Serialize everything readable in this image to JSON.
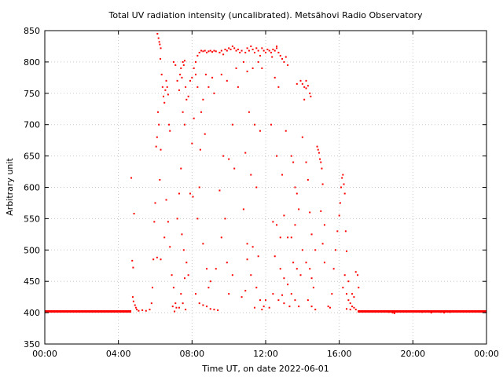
{
  "chart_data": {
    "type": "scatter",
    "title": "Total UV radiation intensity (uncalibrated). Metsähovi Radio Observatory",
    "xlabel": "Time UT, on date 2022-06-01",
    "ylabel": "Arbitrary unit",
    "xlim_hours": [
      0,
      24
    ],
    "ylim": [
      350,
      850
    ],
    "x_ticks": [
      {
        "hour": 0,
        "label": "00:00"
      },
      {
        "hour": 4,
        "label": "04:00"
      },
      {
        "hour": 8,
        "label": "08:00"
      },
      {
        "hour": 12,
        "label": "12:00"
      },
      {
        "hour": 16,
        "label": "16:00"
      },
      {
        "hour": 20,
        "label": "20:00"
      },
      {
        "hour": 24,
        "label": "00:00"
      }
    ],
    "y_ticks": [
      350,
      400,
      450,
      500,
      550,
      600,
      650,
      700,
      750,
      800,
      850
    ],
    "grid": true,
    "series_color": "#ff0000",
    "baseline_segments": [
      {
        "x_from": 0.0,
        "x_to": 4.7,
        "y": 402
      },
      {
        "x_from": 17.0,
        "x_to": 24.0,
        "y": 402
      }
    ],
    "points": [
      [
        4.7,
        615
      ],
      [
        4.75,
        483
      ],
      [
        4.8,
        472
      ],
      [
        4.85,
        558
      ],
      [
        4.78,
        425
      ],
      [
        4.82,
        418
      ],
      [
        4.9,
        412
      ],
      [
        4.95,
        408
      ],
      [
        5.0,
        405
      ],
      [
        5.1,
        403
      ],
      [
        5.3,
        404
      ],
      [
        5.5,
        403
      ],
      [
        5.7,
        405
      ],
      [
        5.8,
        415
      ],
      [
        5.85,
        440
      ],
      [
        5.9,
        485
      ],
      [
        5.95,
        545
      ],
      [
        6.0,
        575
      ],
      [
        6.05,
        665
      ],
      [
        6.1,
        680
      ],
      [
        6.15,
        720
      ],
      [
        6.12,
        845
      ],
      [
        6.18,
        838
      ],
      [
        6.22,
        832
      ],
      [
        6.25,
        828
      ],
      [
        6.3,
        822
      ],
      [
        6.28,
        805
      ],
      [
        6.35,
        780
      ],
      [
        6.4,
        760
      ],
      [
        6.45,
        745
      ],
      [
        6.5,
        735
      ],
      [
        6.55,
        755
      ],
      [
        6.6,
        770
      ],
      [
        6.65,
        760
      ],
      [
        6.7,
        748
      ],
      [
        6.75,
        700
      ],
      [
        6.8,
        690
      ],
      [
        6.3,
        660
      ],
      [
        6.2,
        700
      ],
      [
        6.25,
        612
      ],
      [
        6.1,
        488
      ],
      [
        6.3,
        485
      ],
      [
        6.5,
        520
      ],
      [
        6.6,
        580
      ],
      [
        6.7,
        545
      ],
      [
        6.8,
        505
      ],
      [
        6.9,
        460
      ],
      [
        7.0,
        440
      ],
      [
        6.95,
        410
      ],
      [
        7.05,
        402
      ],
      [
        7.1,
        415
      ],
      [
        7.15,
        408
      ],
      [
        7.0,
        800
      ],
      [
        7.1,
        795
      ],
      [
        7.2,
        770
      ],
      [
        7.3,
        755
      ],
      [
        7.35,
        780
      ],
      [
        7.4,
        790
      ],
      [
        7.5,
        800
      ],
      [
        7.55,
        795
      ],
      [
        7.6,
        802
      ],
      [
        7.45,
        775
      ],
      [
        7.65,
        760
      ],
      [
        7.7,
        740
      ],
      [
        7.8,
        745
      ],
      [
        7.9,
        770
      ],
      [
        7.4,
        630
      ],
      [
        7.5,
        720
      ],
      [
        7.6,
        700
      ],
      [
        7.3,
        590
      ],
      [
        7.2,
        550
      ],
      [
        7.45,
        525
      ],
      [
        7.55,
        500
      ],
      [
        7.7,
        480
      ],
      [
        7.8,
        460
      ],
      [
        7.6,
        455
      ],
      [
        7.4,
        430
      ],
      [
        7.5,
        415
      ],
      [
        7.65,
        405
      ],
      [
        7.3,
        408
      ],
      [
        8.0,
        775
      ],
      [
        8.1,
        790
      ],
      [
        8.2,
        800
      ],
      [
        8.3,
        810
      ],
      [
        8.4,
        815
      ],
      [
        8.5,
        818
      ],
      [
        8.6,
        817
      ],
      [
        8.7,
        818
      ],
      [
        8.8,
        815
      ],
      [
        8.9,
        817
      ],
      [
        9.0,
        818
      ],
      [
        9.1,
        816
      ],
      [
        9.2,
        818
      ],
      [
        9.3,
        817
      ],
      [
        8.2,
        780
      ],
      [
        8.3,
        760
      ],
      [
        8.5,
        720
      ],
      [
        8.6,
        740
      ],
      [
        8.75,
        780
      ],
      [
        8.9,
        760
      ],
      [
        9.1,
        775
      ],
      [
        9.2,
        750
      ],
      [
        8.4,
        600
      ],
      [
        8.45,
        660
      ],
      [
        8.7,
        685
      ],
      [
        8.0,
        670
      ],
      [
        8.1,
        710
      ],
      [
        7.9,
        590
      ],
      [
        8.05,
        585
      ],
      [
        8.3,
        550
      ],
      [
        8.6,
        510
      ],
      [
        8.8,
        470
      ],
      [
        9.0,
        450
      ],
      [
        8.2,
        430
      ],
      [
        8.4,
        415
      ],
      [
        8.6,
        412
      ],
      [
        8.8,
        410
      ],
      [
        9.0,
        406
      ],
      [
        9.2,
        405
      ],
      [
        9.4,
        404
      ],
      [
        8.9,
        440
      ],
      [
        9.3,
        470
      ],
      [
        9.5,
        815
      ],
      [
        9.6,
        818
      ],
      [
        9.7,
        812
      ],
      [
        9.8,
        820
      ],
      [
        9.9,
        818
      ],
      [
        10.0,
        822
      ],
      [
        10.1,
        820
      ],
      [
        10.2,
        825
      ],
      [
        10.3,
        822
      ],
      [
        10.4,
        818
      ],
      [
        10.5,
        820
      ],
      [
        10.6,
        815
      ],
      [
        10.7,
        818
      ],
      [
        9.6,
        780
      ],
      [
        9.9,
        770
      ],
      [
        10.4,
        790
      ],
      [
        10.5,
        760
      ],
      [
        9.7,
        650
      ],
      [
        10.0,
        645
      ],
      [
        10.2,
        700
      ],
      [
        9.5,
        595
      ],
      [
        9.8,
        550
      ],
      [
        10.3,
        630
      ],
      [
        9.6,
        520
      ],
      [
        9.9,
        480
      ],
      [
        10.2,
        460
      ],
      [
        10.0,
        430
      ],
      [
        10.8,
        800
      ],
      [
        10.9,
        815
      ],
      [
        11.0,
        822
      ],
      [
        11.1,
        818
      ],
      [
        11.2,
        825
      ],
      [
        11.3,
        820
      ],
      [
        11.4,
        815
      ],
      [
        11.5,
        822
      ],
      [
        11.6,
        818
      ],
      [
        11.7,
        810
      ],
      [
        11.8,
        822
      ],
      [
        11.9,
        818
      ],
      [
        12.0,
        815
      ],
      [
        11.0,
        785
      ],
      [
        11.3,
        790
      ],
      [
        11.6,
        800
      ],
      [
        11.8,
        790
      ],
      [
        11.1,
        720
      ],
      [
        11.4,
        700
      ],
      [
        11.7,
        690
      ],
      [
        10.9,
        655
      ],
      [
        11.2,
        620
      ],
      [
        11.5,
        600
      ],
      [
        10.8,
        565
      ],
      [
        11.0,
        510
      ],
      [
        11.3,
        505
      ],
      [
        11.6,
        490
      ],
      [
        11.0,
        485
      ],
      [
        11.2,
        460
      ],
      [
        11.5,
        440
      ],
      [
        11.7,
        420
      ],
      [
        11.9,
        410
      ],
      [
        11.4,
        408
      ],
      [
        11.8,
        405
      ],
      [
        12.0,
        420
      ],
      [
        10.7,
        425
      ],
      [
        10.9,
        435
      ],
      [
        12.1,
        820
      ],
      [
        12.2,
        818
      ],
      [
        12.3,
        815
      ],
      [
        12.4,
        820
      ],
      [
        12.5,
        818
      ],
      [
        12.6,
        822
      ],
      [
        12.7,
        815
      ],
      [
        12.8,
        810
      ],
      [
        12.9,
        805
      ],
      [
        13.0,
        800
      ],
      [
        13.1,
        808
      ],
      [
        13.2,
        795
      ],
      [
        12.6,
        825
      ],
      [
        12.35,
        808
      ],
      [
        12.5,
        775
      ],
      [
        12.7,
        760
      ],
      [
        12.3,
        700
      ],
      [
        12.6,
        650
      ],
      [
        12.9,
        620
      ],
      [
        13.1,
        690
      ],
      [
        12.4,
        545
      ],
      [
        12.6,
        540
      ],
      [
        12.8,
        520
      ],
      [
        13.0,
        555
      ],
      [
        13.2,
        520
      ],
      [
        12.5,
        490
      ],
      [
        12.8,
        470
      ],
      [
        13.0,
        455
      ],
      [
        13.2,
        445
      ],
      [
        12.4,
        430
      ],
      [
        12.7,
        420
      ],
      [
        13.0,
        415
      ],
      [
        13.3,
        410
      ],
      [
        12.2,
        408
      ],
      [
        12.9,
        428
      ],
      [
        13.4,
        650
      ],
      [
        13.5,
        640
      ],
      [
        13.6,
        600
      ],
      [
        13.7,
        590
      ],
      [
        13.4,
        520
      ],
      [
        13.6,
        540
      ],
      [
        13.8,
        565
      ],
      [
        13.5,
        480
      ],
      [
        13.7,
        470
      ],
      [
        13.9,
        460
      ],
      [
        13.4,
        430
      ],
      [
        13.6,
        420
      ],
      [
        13.8,
        410
      ],
      [
        13.9,
        770
      ],
      [
        14.0,
        765
      ],
      [
        14.1,
        760
      ],
      [
        14.2,
        758
      ],
      [
        14.3,
        762
      ],
      [
        14.4,
        750
      ],
      [
        14.45,
        745
      ],
      [
        14.1,
        740
      ],
      [
        14.2,
        770
      ],
      [
        13.7,
        765
      ],
      [
        14.0,
        680
      ],
      [
        14.2,
        640
      ],
      [
        14.3,
        612
      ],
      [
        14.4,
        560
      ],
      [
        14.5,
        525
      ],
      [
        14.0,
        500
      ],
      [
        14.2,
        480
      ],
      [
        14.4,
        470
      ],
      [
        14.5,
        455
      ],
      [
        14.6,
        440
      ],
      [
        14.3,
        420
      ],
      [
        14.5,
        410
      ],
      [
        14.7,
        405
      ],
      [
        14.8,
        665
      ],
      [
        14.85,
        660
      ],
      [
        14.9,
        655
      ],
      [
        14.95,
        645
      ],
      [
        15.0,
        640
      ],
      [
        15.05,
        630
      ],
      [
        15.1,
        605
      ],
      [
        15.0,
        562
      ],
      [
        15.2,
        540
      ],
      [
        15.1,
        510
      ],
      [
        14.7,
        500
      ],
      [
        15.2,
        480
      ],
      [
        15.4,
        410
      ],
      [
        15.5,
        408
      ],
      [
        15.6,
        430
      ],
      [
        15.7,
        470
      ],
      [
        15.8,
        500
      ],
      [
        15.9,
        530
      ],
      [
        16.0,
        555
      ],
      [
        16.05,
        575
      ],
      [
        16.1,
        600
      ],
      [
        16.15,
        615
      ],
      [
        16.2,
        620
      ],
      [
        16.25,
        605
      ],
      [
        16.3,
        590
      ],
      [
        16.35,
        530
      ],
      [
        16.4,
        498
      ],
      [
        16.3,
        460
      ],
      [
        16.2,
        440
      ],
      [
        16.4,
        430
      ],
      [
        16.5,
        420
      ],
      [
        16.6,
        415
      ],
      [
        16.7,
        410
      ],
      [
        16.8,
        408
      ],
      [
        16.9,
        405
      ],
      [
        16.5,
        450
      ],
      [
        16.7,
        430
      ],
      [
        16.8,
        425
      ],
      [
        16.9,
        465
      ],
      [
        17.0,
        460
      ],
      [
        17.05,
        440
      ],
      [
        16.6,
        405
      ],
      [
        16.4,
        406
      ],
      [
        18.7,
        401
      ],
      [
        18.9,
        400
      ],
      [
        19.0,
        399
      ],
      [
        20.5,
        401
      ],
      [
        21.0,
        400
      ],
      [
        21.5,
        401
      ],
      [
        21.7,
        400
      ],
      [
        22.0,
        401
      ]
    ]
  }
}
